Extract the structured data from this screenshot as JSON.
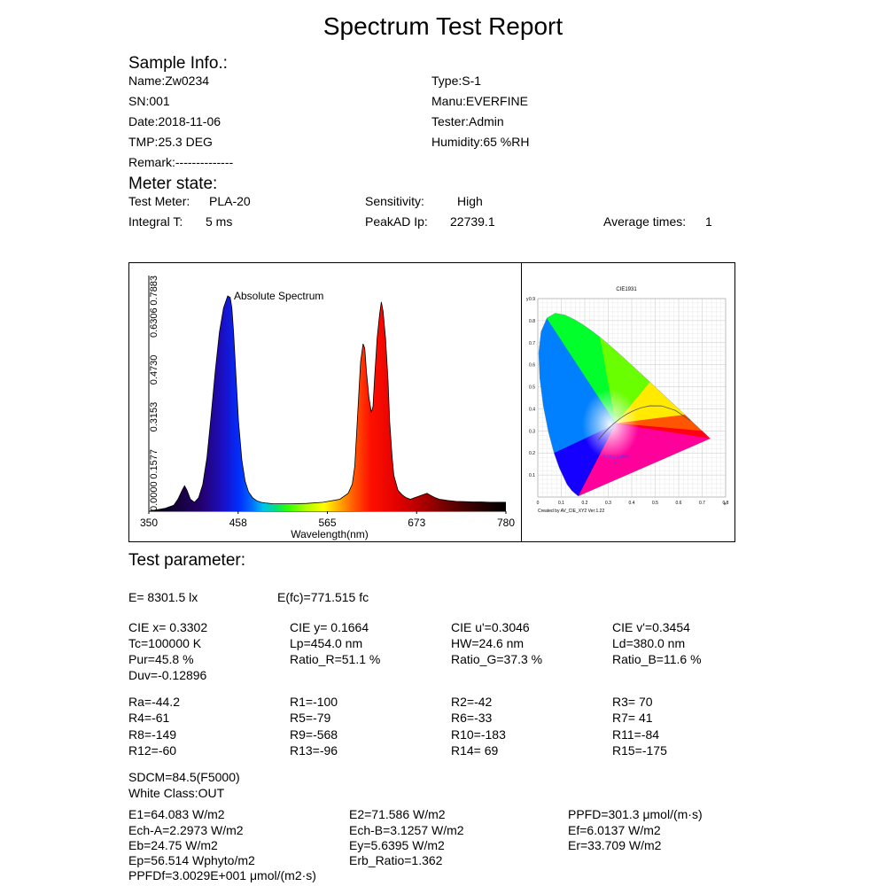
{
  "title": "Spectrum Test Report",
  "sample": {
    "heading": "Sample Info.:",
    "name": "Name:Zw0234",
    "sn": "SN:001",
    "date": "Date:2018-11-06",
    "tmp": "TMP:25.3 DEG",
    "remark": "Remark:--------------",
    "type": "Type:S-1",
    "manu": "Manu:EVERFINE",
    "tester": "Tester:Admin",
    "humidity": "Humidity:65 %RH"
  },
  "meter": {
    "heading": "Meter state:",
    "test_meter_label": "Test Meter:",
    "test_meter_value": "PLA-20",
    "sensitivity_label": "Sensitivity:",
    "sensitivity_value": "High",
    "integral_label": "Integral T:",
    "integral_value": "5 ms",
    "peakad_label": "PeakAD Ip:",
    "peakad_value": "22739.1",
    "avg_label": "Average times:",
    "avg_value": "1"
  },
  "chart_data": [
    {
      "type": "area",
      "title": "Absolute Spectrum",
      "xlabel": "Wavelength(nm)",
      "ylabel": "",
      "xlim": [
        350,
        780
      ],
      "ylim": [
        0,
        0.7883
      ],
      "x_ticks": [
        "350",
        "458",
        "565",
        "673",
        "780"
      ],
      "y_ticks": [
        "0.0000",
        "0.1577",
        "0.3153",
        "0.4730",
        "0.6306",
        "0.7883"
      ],
      "x": [
        350,
        370,
        380,
        385,
        390,
        393,
        396,
        400,
        405,
        410,
        415,
        420,
        425,
        430,
        435,
        440,
        445,
        448,
        450,
        452,
        455,
        458,
        462,
        466,
        470,
        475,
        480,
        485,
        490,
        500,
        520,
        540,
        560,
        580,
        590,
        595,
        598,
        600,
        603,
        605,
        608,
        610,
        612,
        615,
        618,
        620,
        622,
        625,
        628,
        630,
        632,
        635,
        638,
        640,
        643,
        645,
        648,
        650,
        655,
        660,
        665,
        670,
        675,
        680,
        685,
        690,
        695,
        700,
        705,
        710,
        720,
        730,
        740,
        750,
        760,
        770,
        780
      ],
      "values": [
        0.0,
        0.01,
        0.02,
        0.04,
        0.07,
        0.085,
        0.07,
        0.04,
        0.03,
        0.045,
        0.09,
        0.18,
        0.32,
        0.47,
        0.6,
        0.68,
        0.72,
        0.715,
        0.68,
        0.6,
        0.45,
        0.3,
        0.17,
        0.1,
        0.065,
        0.045,
        0.035,
        0.03,
        0.028,
        0.025,
        0.025,
        0.026,
        0.03,
        0.04,
        0.06,
        0.09,
        0.15,
        0.25,
        0.4,
        0.5,
        0.56,
        0.545,
        0.47,
        0.38,
        0.33,
        0.35,
        0.45,
        0.58,
        0.66,
        0.7,
        0.67,
        0.58,
        0.44,
        0.3,
        0.18,
        0.12,
        0.09,
        0.07,
        0.055,
        0.045,
        0.04,
        0.045,
        0.05,
        0.055,
        0.06,
        0.052,
        0.045,
        0.04,
        0.038,
        0.036,
        0.033,
        0.032,
        0.031,
        0.031,
        0.03,
        0.03,
        0.03
      ]
    },
    {
      "type": "scatter",
      "title": "CIE1931",
      "xlabel": "x",
      "ylabel": "y",
      "xlim": [
        0,
        0.8
      ],
      "ylim": [
        0,
        0.9
      ],
      "x_ticks": [
        "0",
        "0.1",
        "0.2",
        "0.3",
        "0.4",
        "0.5",
        "0.6",
        "0.7",
        "0.8"
      ],
      "y_ticks": [
        "0.1",
        "0.2",
        "0.3",
        "0.4",
        "0.5",
        "0.6",
        "0.7",
        "0.8",
        "0.9"
      ],
      "point": {
        "x": 0.3302,
        "y": 0.1664
      },
      "point_label": "0.3302,0.1664",
      "credit": "Created by AV_CIE_XY2 Ver:1.22"
    }
  ],
  "params": {
    "heading": "Test parameter:",
    "e": "E=  8301.5 lx",
    "efc": "E(fc)=771.515 fc",
    "cie_x": "CIE x= 0.3302",
    "cie_y": "CIE y= 0.1664",
    "cie_u": "CIE u'=0.3046",
    "cie_v": "CIE v'=0.3454",
    "tc": "Tc=100000 K",
    "lp": "Lp=454.0 nm",
    "hw": "HW=24.6 nm",
    "ld": "Ld=380.0 nm",
    "pur": "Pur=45.8 %",
    "ratio_r": "Ratio_R=51.1 %",
    "ratio_g": "Ratio_G=37.3 %",
    "ratio_b": "Ratio_B=11.6 %",
    "duv": "Duv=-0.12896",
    "ra": "Ra=-44.2",
    "r1": "R1=-100",
    "r2": "R2=-42",
    "r3": "R3= 70",
    "r4": "R4=-61",
    "r5": "R5=-79",
    "r6": "R6=-33",
    "r7": "R7= 41",
    "r8": "R8=-149",
    "r9": "R9=-568",
    "r10": "R10=-183",
    "r11": "R11=-84",
    "r12": "R12=-60",
    "r13": "R13=-96",
    "r14": "R14= 69",
    "r15": "R15=-175",
    "sdcm": "SDCM=84.5(F5000)",
    "white_class": "White Class:OUT",
    "e1": "E1=64.083 W/m2",
    "e2": "E2=71.586 W/m2",
    "ppfd": "PPFD=301.3 μmol/(m·s)",
    "ech_a": "Ech-A=2.2973 W/m2",
    "ech_b": "Ech-B=3.1257 W/m2",
    "ef": "Ef=6.0137 W/m2",
    "eb": "Eb=24.75 W/m2",
    "ey": "Ey=5.6395 W/m2",
    "er": "Er=33.709 W/m2",
    "ep": "Ep=56.514 Wphyto/m2",
    "erb": "Erb_Ratio=1.362",
    "ppfdf": "PPFDf=3.0029E+001 μmol/(m2·s)"
  }
}
